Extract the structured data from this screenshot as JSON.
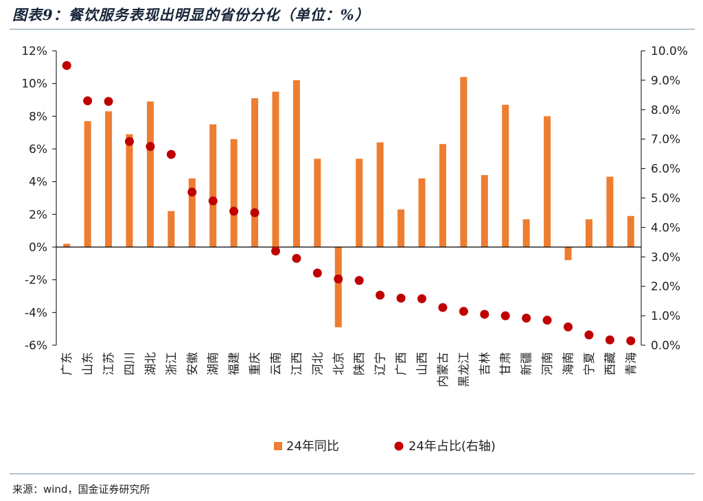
{
  "title": "图表9：餐饮服务表现出明显的省份分化（单位：%）",
  "source": "来源：wind，国金证券研究所",
  "chart_data": {
    "type": "bar",
    "categories": [
      "广东",
      "山东",
      "江苏",
      "四川",
      "湖北",
      "浙江",
      "安徽",
      "湖南",
      "福建",
      "重庆",
      "云南",
      "江西",
      "河北",
      "北京",
      "陕西",
      "辽宁",
      "广西",
      "山西",
      "内蒙古",
      "黑龙江",
      "吉林",
      "甘肃",
      "新疆",
      "河南",
      "海南",
      "宁夏",
      "西藏",
      "青海"
    ],
    "series": [
      {
        "name": "24年同比",
        "type": "bar",
        "axis": "left",
        "color": "#ed7d31",
        "values": [
          0.2,
          7.7,
          8.3,
          6.9,
          8.9,
          2.2,
          4.2,
          7.5,
          6.6,
          9.1,
          9.5,
          10.2,
          5.4,
          -4.9,
          5.4,
          6.4,
          2.3,
          4.2,
          6.3,
          10.4,
          4.4,
          8.7,
          1.7,
          8.0,
          -0.8,
          1.7,
          4.3,
          1.9
        ]
      },
      {
        "name": "24年占比(右轴)",
        "type": "scatter",
        "axis": "right",
        "color": "#c00000",
        "values": [
          9.5,
          8.3,
          8.28,
          6.92,
          6.75,
          6.48,
          5.2,
          4.9,
          4.55,
          4.5,
          3.2,
          2.95,
          2.45,
          2.25,
          2.2,
          1.7,
          1.6,
          1.58,
          1.28,
          1.15,
          1.05,
          1.0,
          0.92,
          0.85,
          0.62,
          0.35,
          0.18,
          0.15
        ]
      }
    ],
    "y_left": {
      "min": -6,
      "max": 12,
      "step": 2,
      "format": "%d%"
    },
    "y_right": {
      "min": 0,
      "max": 10,
      "step": 1,
      "format": "%.1f%"
    },
    "legend_position": "bottom"
  }
}
